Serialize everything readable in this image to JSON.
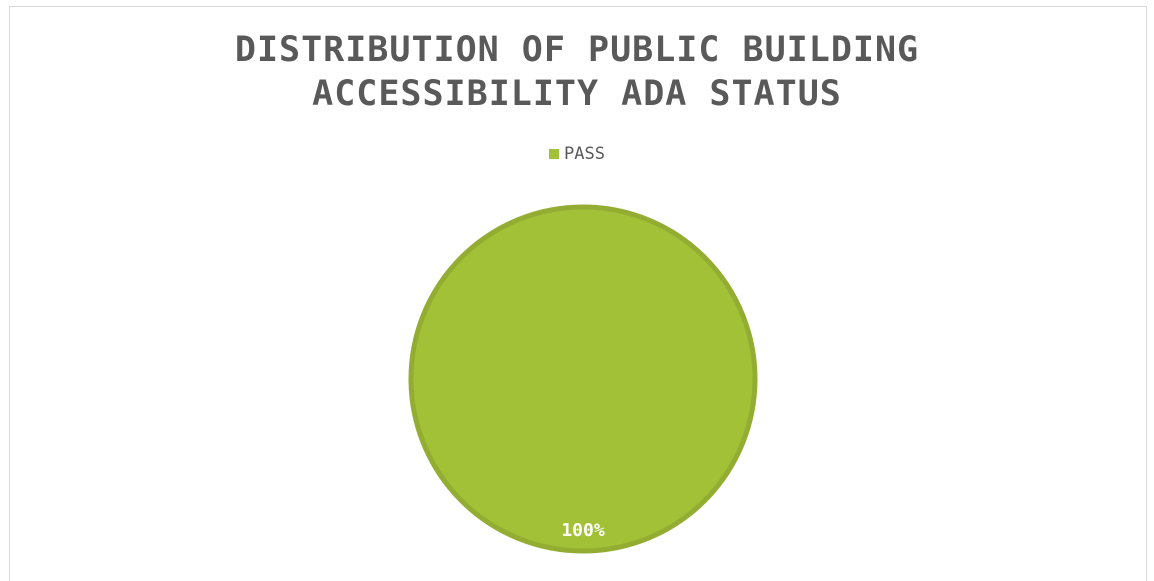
{
  "chart_data": {
    "type": "pie",
    "title_lines": [
      "DISTRIBUTION OF PUBLIC BUILDING",
      "ACCESSIBILITY ADA STATUS"
    ],
    "legend": {
      "placement": "top",
      "entries": [
        {
          "label": "PASS",
          "color": "#a2c136"
        }
      ]
    },
    "slices": [
      {
        "label": "PASS",
        "value": 100,
        "data_label": "100%",
        "color": "#a2c136",
        "edge_color": "#93ad33"
      }
    ]
  }
}
